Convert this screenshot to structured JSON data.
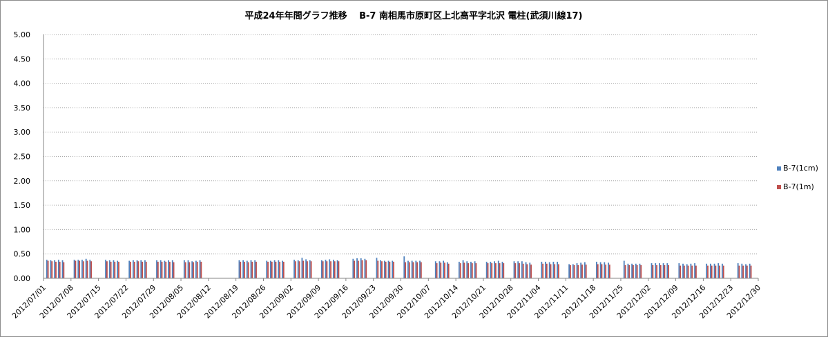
{
  "chart_data": {
    "type": "bar",
    "title": "平成24年年間グラフ推移　 B-7 南相馬市原町区上北高平字北沢  電柱(武須川線17)",
    "xlabel": "",
    "ylabel": "",
    "ylim": [
      0,
      5.0
    ],
    "y_ticks": [
      "0.00",
      "0.50",
      "1.00",
      "1.50",
      "2.00",
      "2.50",
      "3.00",
      "3.50",
      "4.00",
      "4.50",
      "5.00"
    ],
    "x_start": "2012/07/01",
    "x_end": "2012/12/30",
    "x_ticks": [
      "2012/07/01",
      "2012/07/08",
      "2012/07/15",
      "2012/07/22",
      "2012/07/29",
      "2012/08/05",
      "2012/08/12",
      "2012/08/19",
      "2012/08/26",
      "2012/09/02",
      "2012/09/09",
      "2012/09/16",
      "2012/09/23",
      "2012/09/30",
      "2012/10/07",
      "2012/10/14",
      "2012/10/21",
      "2012/10/28",
      "2012/11/04",
      "2012/11/11",
      "2012/11/18",
      "2012/11/25",
      "2012/12/02",
      "2012/12/09",
      "2012/12/16",
      "2012/12/23",
      "2012/12/30"
    ],
    "grid": true,
    "legend_position": "right",
    "series": [
      {
        "name": "B-7(1cm)",
        "color": "#4f81bd",
        "points": [
          [
            "2012/07/02",
            0.38
          ],
          [
            "2012/07/03",
            0.37
          ],
          [
            "2012/07/04",
            0.37
          ],
          [
            "2012/07/05",
            0.38
          ],
          [
            "2012/07/06",
            0.37
          ],
          [
            "2012/07/09",
            0.38
          ],
          [
            "2012/07/10",
            0.38
          ],
          [
            "2012/07/11",
            0.38
          ],
          [
            "2012/07/12",
            0.4
          ],
          [
            "2012/07/13",
            0.38
          ],
          [
            "2012/07/17",
            0.38
          ],
          [
            "2012/07/18",
            0.37
          ],
          [
            "2012/07/19",
            0.37
          ],
          [
            "2012/07/20",
            0.36
          ],
          [
            "2012/07/23",
            0.36
          ],
          [
            "2012/07/24",
            0.37
          ],
          [
            "2012/07/25",
            0.37
          ],
          [
            "2012/07/26",
            0.37
          ],
          [
            "2012/07/27",
            0.37
          ],
          [
            "2012/07/30",
            0.37
          ],
          [
            "2012/07/31",
            0.37
          ],
          [
            "2012/08/01",
            0.36
          ],
          [
            "2012/08/02",
            0.37
          ],
          [
            "2012/08/03",
            0.37
          ],
          [
            "2012/08/06",
            0.37
          ],
          [
            "2012/08/07",
            0.37
          ],
          [
            "2012/08/08",
            0.35
          ],
          [
            "2012/08/09",
            0.36
          ],
          [
            "2012/08/10",
            0.37
          ],
          [
            "2012/08/20",
            0.37
          ],
          [
            "2012/08/21",
            0.37
          ],
          [
            "2012/08/22",
            0.36
          ],
          [
            "2012/08/23",
            0.37
          ],
          [
            "2012/08/24",
            0.37
          ],
          [
            "2012/08/27",
            0.36
          ],
          [
            "2012/08/28",
            0.36
          ],
          [
            "2012/08/29",
            0.37
          ],
          [
            "2012/08/30",
            0.37
          ],
          [
            "2012/08/31",
            0.36
          ],
          [
            "2012/09/03",
            0.38
          ],
          [
            "2012/09/04",
            0.37
          ],
          [
            "2012/09/05",
            0.42
          ],
          [
            "2012/09/06",
            0.39
          ],
          [
            "2012/09/07",
            0.37
          ],
          [
            "2012/09/10",
            0.37
          ],
          [
            "2012/09/11",
            0.38
          ],
          [
            "2012/09/12",
            0.39
          ],
          [
            "2012/09/13",
            0.38
          ],
          [
            "2012/09/14",
            0.37
          ],
          [
            "2012/09/18",
            0.4
          ],
          [
            "2012/09/19",
            0.41
          ],
          [
            "2012/09/20",
            0.41
          ],
          [
            "2012/09/21",
            0.4
          ],
          [
            "2012/09/24",
            0.42
          ],
          [
            "2012/09/25",
            0.37
          ],
          [
            "2012/09/26",
            0.36
          ],
          [
            "2012/09/27",
            0.36
          ],
          [
            "2012/09/28",
            0.36
          ],
          [
            "2012/10/01",
            0.45
          ],
          [
            "2012/10/02",
            0.36
          ],
          [
            "2012/10/03",
            0.36
          ],
          [
            "2012/10/04",
            0.36
          ],
          [
            "2012/10/05",
            0.36
          ],
          [
            "2012/10/09",
            0.35
          ],
          [
            "2012/10/10",
            0.35
          ],
          [
            "2012/10/11",
            0.36
          ],
          [
            "2012/10/12",
            0.33
          ],
          [
            "2012/10/15",
            0.34
          ],
          [
            "2012/10/16",
            0.37
          ],
          [
            "2012/10/17",
            0.35
          ],
          [
            "2012/10/18",
            0.34
          ],
          [
            "2012/10/19",
            0.35
          ],
          [
            "2012/10/22",
            0.34
          ],
          [
            "2012/10/23",
            0.34
          ],
          [
            "2012/10/24",
            0.35
          ],
          [
            "2012/10/25",
            0.36
          ],
          [
            "2012/10/26",
            0.34
          ],
          [
            "2012/10/29",
            0.35
          ],
          [
            "2012/10/30",
            0.35
          ],
          [
            "2012/10/31",
            0.35
          ],
          [
            "2012/11/01",
            0.33
          ],
          [
            "2012/11/02",
            0.32
          ],
          [
            "2012/11/05",
            0.34
          ],
          [
            "2012/11/06",
            0.34
          ],
          [
            "2012/11/07",
            0.33
          ],
          [
            "2012/11/08",
            0.34
          ],
          [
            "2012/11/09",
            0.34
          ],
          [
            "2012/11/12",
            0.29
          ],
          [
            "2012/11/13",
            0.29
          ],
          [
            "2012/11/14",
            0.31
          ],
          [
            "2012/11/15",
            0.32
          ],
          [
            "2012/11/16",
            0.33
          ],
          [
            "2012/11/19",
            0.34
          ],
          [
            "2012/11/20",
            0.33
          ],
          [
            "2012/11/21",
            0.33
          ],
          [
            "2012/11/22",
            0.32
          ],
          [
            "2012/11/26",
            0.36
          ],
          [
            "2012/11/27",
            0.3
          ],
          [
            "2012/11/28",
            0.3
          ],
          [
            "2012/11/29",
            0.3
          ],
          [
            "2012/11/30",
            0.3
          ],
          [
            "2012/12/03",
            0.31
          ],
          [
            "2012/12/04",
            0.31
          ],
          [
            "2012/12/05",
            0.31
          ],
          [
            "2012/12/06",
            0.31
          ],
          [
            "2012/12/07",
            0.31
          ],
          [
            "2012/12/10",
            0.31
          ],
          [
            "2012/12/11",
            0.3
          ],
          [
            "2012/12/12",
            0.29
          ],
          [
            "2012/12/13",
            0.3
          ],
          [
            "2012/12/14",
            0.31
          ],
          [
            "2012/12/17",
            0.3
          ],
          [
            "2012/12/18",
            0.3
          ],
          [
            "2012/12/19",
            0.3
          ],
          [
            "2012/12/20",
            0.31
          ],
          [
            "2012/12/21",
            0.3
          ],
          [
            "2012/12/25",
            0.31
          ],
          [
            "2012/12/26",
            0.3
          ],
          [
            "2012/12/27",
            0.29
          ],
          [
            "2012/12/28",
            0.3
          ]
        ]
      },
      {
        "name": "B-7(1m)",
        "color": "#c0504d",
        "points": [
          [
            "2012/07/02",
            0.36
          ],
          [
            "2012/07/03",
            0.35
          ],
          [
            "2012/07/04",
            0.34
          ],
          [
            "2012/07/05",
            0.34
          ],
          [
            "2012/07/06",
            0.33
          ],
          [
            "2012/07/09",
            0.36
          ],
          [
            "2012/07/10",
            0.36
          ],
          [
            "2012/07/11",
            0.35
          ],
          [
            "2012/07/12",
            0.36
          ],
          [
            "2012/07/13",
            0.35
          ],
          [
            "2012/07/17",
            0.35
          ],
          [
            "2012/07/18",
            0.34
          ],
          [
            "2012/07/19",
            0.34
          ],
          [
            "2012/07/20",
            0.34
          ],
          [
            "2012/07/23",
            0.34
          ],
          [
            "2012/07/24",
            0.34
          ],
          [
            "2012/07/25",
            0.35
          ],
          [
            "2012/07/26",
            0.34
          ],
          [
            "2012/07/27",
            0.34
          ],
          [
            "2012/07/30",
            0.34
          ],
          [
            "2012/07/31",
            0.34
          ],
          [
            "2012/08/01",
            0.34
          ],
          [
            "2012/08/02",
            0.34
          ],
          [
            "2012/08/03",
            0.33
          ],
          [
            "2012/08/06",
            0.33
          ],
          [
            "2012/08/07",
            0.33
          ],
          [
            "2012/08/08",
            0.33
          ],
          [
            "2012/08/09",
            0.34
          ],
          [
            "2012/08/10",
            0.34
          ],
          [
            "2012/08/20",
            0.34
          ],
          [
            "2012/08/21",
            0.34
          ],
          [
            "2012/08/22",
            0.33
          ],
          [
            "2012/08/23",
            0.34
          ],
          [
            "2012/08/24",
            0.34
          ],
          [
            "2012/08/27",
            0.34
          ],
          [
            "2012/08/28",
            0.34
          ],
          [
            "2012/08/29",
            0.34
          ],
          [
            "2012/08/30",
            0.34
          ],
          [
            "2012/08/31",
            0.34
          ],
          [
            "2012/09/03",
            0.35
          ],
          [
            "2012/09/04",
            0.35
          ],
          [
            "2012/09/05",
            0.36
          ],
          [
            "2012/09/06",
            0.35
          ],
          [
            "2012/09/07",
            0.35
          ],
          [
            "2012/09/10",
            0.35
          ],
          [
            "2012/09/11",
            0.35
          ],
          [
            "2012/09/12",
            0.35
          ],
          [
            "2012/09/13",
            0.35
          ],
          [
            "2012/09/14",
            0.35
          ],
          [
            "2012/09/18",
            0.36
          ],
          [
            "2012/09/19",
            0.36
          ],
          [
            "2012/09/20",
            0.37
          ],
          [
            "2012/09/21",
            0.37
          ],
          [
            "2012/09/24",
            0.36
          ],
          [
            "2012/09/25",
            0.35
          ],
          [
            "2012/09/26",
            0.34
          ],
          [
            "2012/09/27",
            0.34
          ],
          [
            "2012/09/28",
            0.34
          ],
          [
            "2012/10/01",
            0.33
          ],
          [
            "2012/10/02",
            0.33
          ],
          [
            "2012/10/03",
            0.33
          ],
          [
            "2012/10/04",
            0.33
          ],
          [
            "2012/10/05",
            0.33
          ],
          [
            "2012/10/09",
            0.31
          ],
          [
            "2012/10/10",
            0.32
          ],
          [
            "2012/10/11",
            0.32
          ],
          [
            "2012/10/12",
            0.3
          ],
          [
            "2012/10/15",
            0.31
          ],
          [
            "2012/10/16",
            0.32
          ],
          [
            "2012/10/17",
            0.31
          ],
          [
            "2012/10/18",
            0.31
          ],
          [
            "2012/10/19",
            0.31
          ],
          [
            "2012/10/22",
            0.31
          ],
          [
            "2012/10/23",
            0.31
          ],
          [
            "2012/10/24",
            0.31
          ],
          [
            "2012/10/25",
            0.31
          ],
          [
            "2012/10/26",
            0.31
          ],
          [
            "2012/10/29",
            0.31
          ],
          [
            "2012/10/30",
            0.31
          ],
          [
            "2012/10/31",
            0.3
          ],
          [
            "2012/11/01",
            0.29
          ],
          [
            "2012/11/02",
            0.28
          ],
          [
            "2012/11/05",
            0.3
          ],
          [
            "2012/11/06",
            0.3
          ],
          [
            "2012/11/07",
            0.29
          ],
          [
            "2012/11/08",
            0.29
          ],
          [
            "2012/11/09",
            0.29
          ],
          [
            "2012/11/12",
            0.27
          ],
          [
            "2012/11/13",
            0.27
          ],
          [
            "2012/11/14",
            0.27
          ],
          [
            "2012/11/15",
            0.28
          ],
          [
            "2012/11/16",
            0.28
          ],
          [
            "2012/11/19",
            0.29
          ],
          [
            "2012/11/20",
            0.29
          ],
          [
            "2012/11/21",
            0.28
          ],
          [
            "2012/11/22",
            0.28
          ],
          [
            "2012/11/26",
            0.27
          ],
          [
            "2012/11/27",
            0.27
          ],
          [
            "2012/11/28",
            0.27
          ],
          [
            "2012/11/29",
            0.27
          ],
          [
            "2012/11/30",
            0.27
          ],
          [
            "2012/12/03",
            0.27
          ],
          [
            "2012/12/04",
            0.27
          ],
          [
            "2012/12/05",
            0.27
          ],
          [
            "2012/12/06",
            0.27
          ],
          [
            "2012/12/07",
            0.27
          ],
          [
            "2012/12/10",
            0.26
          ],
          [
            "2012/12/11",
            0.26
          ],
          [
            "2012/12/12",
            0.26
          ],
          [
            "2012/12/13",
            0.26
          ],
          [
            "2012/12/14",
            0.26
          ],
          [
            "2012/12/17",
            0.26
          ],
          [
            "2012/12/18",
            0.26
          ],
          [
            "2012/12/19",
            0.26
          ],
          [
            "2012/12/20",
            0.26
          ],
          [
            "2012/12/21",
            0.26
          ],
          [
            "2012/12/25",
            0.26
          ],
          [
            "2012/12/26",
            0.26
          ],
          [
            "2012/12/27",
            0.26
          ],
          [
            "2012/12/28",
            0.26
          ]
        ]
      }
    ]
  }
}
